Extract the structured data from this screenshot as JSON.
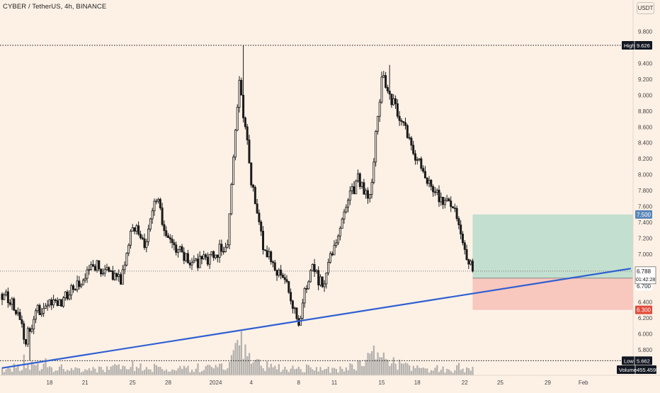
{
  "header": {
    "symbol_title": "CYBER / TetherUS, 4h, BINANCE",
    "currency": "USDT"
  },
  "colors": {
    "background": "#fdf1e6",
    "candle": "#1a1a1a",
    "trendline": "#2f5fd1",
    "profit_zone": "#b8dcca",
    "loss_zone": "#f7c0b6",
    "level_line": "#111111",
    "volume": "#9a9a9a",
    "entry_badge": "#ffffff",
    "target_badge": "#5a86b8",
    "stop_badge": "#e14a3a"
  },
  "chart_data": {
    "type": "candlestick",
    "instrument": "CYBER / TetherUS",
    "interval": "4h",
    "exchange": "BINANCE",
    "ylim": [
      5.3,
      10.0
    ],
    "y_scale": "linear",
    "y_ticks": [
      "9.800",
      "9.400",
      "9.200",
      "9.000",
      "8.800",
      "8.600",
      "8.400",
      "8.200",
      "8.000",
      "7.800",
      "7.600",
      "7.400",
      "7.200",
      "7.000",
      "6.800",
      "6.600",
      "6.400",
      "6.200",
      "6.000",
      "5.800"
    ],
    "x_ticks": [
      "18",
      "21",
      "25",
      "28",
      "2024",
      "4",
      "8",
      "11",
      "15",
      "18",
      "22",
      "25",
      "29",
      "Feb"
    ],
    "grid": false,
    "labels": {
      "high_label": "High",
      "high_value": "9.626",
      "low_label": "Low",
      "low_value": "5.662",
      "current_price": "6.788",
      "countdown": "01:42:28",
      "target_price": "7.500",
      "stop_price": "6.300",
      "entry_price": "6.700",
      "volume_label": "Volume",
      "volume_value": "455.459K"
    },
    "high": 9.626,
    "low": 5.662,
    "last_price": 6.788,
    "position": {
      "entry": 6.7,
      "target": 7.5,
      "stop": 6.3
    },
    "trendline": {
      "from": {
        "date": "2023-12-14",
        "price": 5.57
      },
      "to": {
        "date": "2024-02-05",
        "price": 6.82
      }
    },
    "price_path": [
      {
        "date": "2023-12-14",
        "price": 6.5
      },
      {
        "date": "2023-12-15",
        "price": 6.35
      },
      {
        "date": "2023-12-16",
        "price": 5.93
      },
      {
        "date": "2023-12-17",
        "price": 6.3
      },
      {
        "date": "2023-12-19",
        "price": 6.4
      },
      {
        "date": "2023-12-21",
        "price": 6.75
      },
      {
        "date": "2023-12-22",
        "price": 6.85
      },
      {
        "date": "2023-12-24",
        "price": 6.65
      },
      {
        "date": "2023-12-25",
        "price": 7.4
      },
      {
        "date": "2023-12-26",
        "price": 7.1
      },
      {
        "date": "2023-12-27",
        "price": 7.7
      },
      {
        "date": "2023-12-28",
        "price": 7.2
      },
      {
        "date": "2023-12-30",
        "price": 6.85
      },
      {
        "date": "2024-01-01",
        "price": 7.0
      },
      {
        "date": "2024-01-02",
        "price": 7.15
      },
      {
        "date": "2024-01-03",
        "price": 9.2
      },
      {
        "date": "2024-01-04",
        "price": 7.95
      },
      {
        "date": "2024-01-05",
        "price": 7.1
      },
      {
        "date": "2024-01-07",
        "price": 6.6
      },
      {
        "date": "2024-01-08",
        "price": 6.15
      },
      {
        "date": "2024-01-09",
        "price": 6.85
      },
      {
        "date": "2024-01-10",
        "price": 6.6
      },
      {
        "date": "2024-01-12",
        "price": 7.6
      },
      {
        "date": "2024-01-13",
        "price": 7.95
      },
      {
        "date": "2024-01-14",
        "price": 7.7
      },
      {
        "date": "2024-01-15",
        "price": 9.25
      },
      {
        "date": "2024-01-16",
        "price": 8.9
      },
      {
        "date": "2024-01-17",
        "price": 8.55
      },
      {
        "date": "2024-01-18",
        "price": 8.2
      },
      {
        "date": "2024-01-19",
        "price": 7.9
      },
      {
        "date": "2024-01-20",
        "price": 7.7
      },
      {
        "date": "2024-01-21",
        "price": 7.6
      },
      {
        "date": "2024-01-22",
        "price": 7.05
      },
      {
        "date": "2024-01-22T16:00",
        "price": 6.788
      }
    ],
    "volume_path": [
      {
        "date": "2023-12-14",
        "volume": 0.25
      },
      {
        "date": "2023-12-16",
        "volume": 0.35
      },
      {
        "date": "2023-12-21",
        "volume": 0.2
      },
      {
        "date": "2023-12-25",
        "volume": 0.3
      },
      {
        "date": "2023-12-28",
        "volume": 0.2
      },
      {
        "date": "2024-01-02",
        "volume": 0.3
      },
      {
        "date": "2024-01-03",
        "volume": 1.0
      },
      {
        "date": "2024-01-04",
        "volume": 0.45
      },
      {
        "date": "2024-01-07",
        "volume": 0.2
      },
      {
        "date": "2024-01-08",
        "volume": 0.25
      },
      {
        "date": "2024-01-12",
        "volume": 0.2
      },
      {
        "date": "2024-01-15",
        "volume": 0.85
      },
      {
        "date": "2024-01-16",
        "volume": 0.4
      },
      {
        "date": "2024-01-19",
        "volume": 0.2
      },
      {
        "date": "2024-01-22T16:00",
        "volume": 0.25
      }
    ]
  }
}
